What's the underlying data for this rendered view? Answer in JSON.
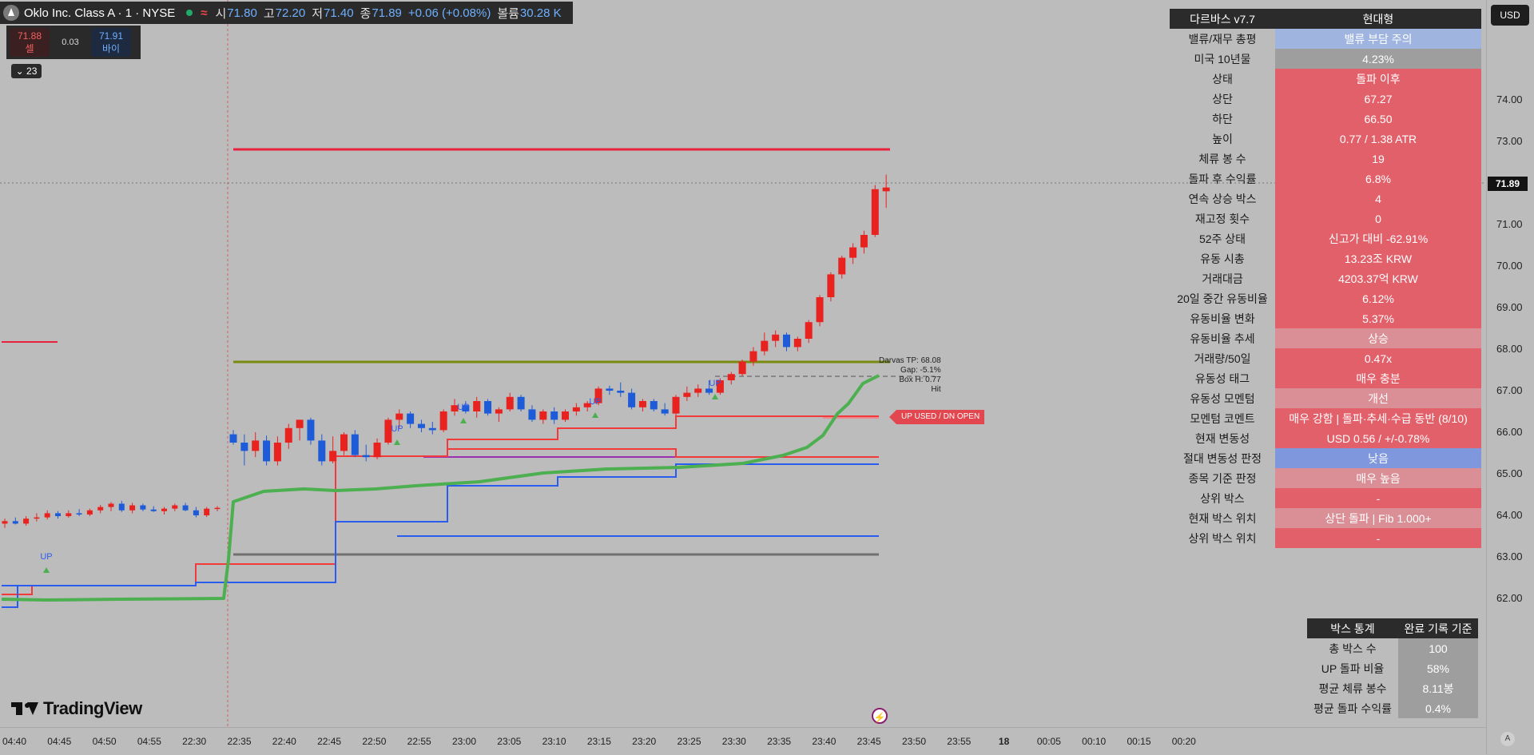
{
  "header": {
    "symbol": "Oklo Inc. Class A · 1 · NYSE",
    "o_label": "시",
    "o": "71.80",
    "h_label": "고",
    "h": "72.20",
    "l_label": "저",
    "l": "71.40",
    "c_label": "종",
    "c": "71.89",
    "change": "+0.06 (+0.08%)",
    "vol_label": "볼륨",
    "vol": "30.28 K"
  },
  "trade": {
    "sell_price": "71.88",
    "sell_label": "셀",
    "spread": "0.03",
    "buy_price": "71.91",
    "buy_label": "바이"
  },
  "legend_toggle": "23",
  "currency": "USD",
  "last_price": "71.89",
  "price_ticks": [
    "74.00",
    "73.00",
    "72.00",
    "71.00",
    "70.00",
    "69.00",
    "68.00",
    "67.00",
    "66.00",
    "65.00",
    "64.00",
    "63.00",
    "62.00"
  ],
  "time_ticks": [
    "04:40",
    "04:45",
    "04:50",
    "04:55",
    "22:30",
    "22:35",
    "22:40",
    "22:45",
    "22:50",
    "22:55",
    "23:00",
    "23:05",
    "23:10",
    "23:15",
    "23:20",
    "23:25",
    "23:30",
    "23:35",
    "23:40",
    "23:45",
    "23:50",
    "23:55",
    "18",
    "00:05",
    "00:10",
    "00:15",
    "00:20"
  ],
  "brand": "TradingView",
  "auto_label": "A",
  "darvas_table": {
    "title": "다르바스 v7.7",
    "mode": "현대형",
    "rows": [
      {
        "label": "밸류/재무 총평",
        "value": "밸류 부담 주의",
        "color": "#9fb5e0"
      },
      {
        "label": "미국 10년물",
        "value": "4.23%",
        "color": "#9e9e9e"
      },
      {
        "label": "상태",
        "value": "돌파 이후",
        "color": "#e2606a"
      },
      {
        "label": "상단",
        "value": "67.27",
        "color": "#e2606a"
      },
      {
        "label": "하단",
        "value": "66.50",
        "color": "#e2606a"
      },
      {
        "label": "높이",
        "value": "0.77 / 1.38 ATR",
        "color": "#e2606a"
      },
      {
        "label": "체류 봉 수",
        "value": "19",
        "color": "#e2606a"
      },
      {
        "label": "돌파 후 수익률",
        "value": "6.8%",
        "color": "#e2606a"
      },
      {
        "label": "연속 상승 박스",
        "value": "4",
        "color": "#e2606a"
      },
      {
        "label": "재고정 횟수",
        "value": "0",
        "color": "#e2606a"
      },
      {
        "label": "52주 상태",
        "value": "신고가 대비 -62.91%",
        "color": "#e2606a"
      },
      {
        "label": "유동 시총",
        "value": "13.23조 KRW",
        "color": "#e2606a"
      },
      {
        "label": "거래대금",
        "value": "4203.37억 KRW",
        "color": "#e2606a"
      },
      {
        "label": "20일 중간 유동비율",
        "value": "6.12%",
        "color": "#e2606a"
      },
      {
        "label": "유동비율 변화",
        "value": "5.37%",
        "color": "#e2606a"
      },
      {
        "label": "유동비율 추세",
        "value": "상승",
        "color": "#d98f95"
      },
      {
        "label": "거래량/50일",
        "value": "0.47x",
        "color": "#e2606a"
      },
      {
        "label": "유동성 태그",
        "value": "매우 충분",
        "color": "#e2606a"
      },
      {
        "label": "유동성 모멘텀",
        "value": "개선",
        "color": "#d98f95"
      },
      {
        "label": "모멘텀 코멘트",
        "value": "매우 강함 | 돌파·추세·수급 동반 (8/10)",
        "color": "#e2606a"
      },
      {
        "label": "현재 변동성",
        "value": "USD 0.56 / +/-0.78%",
        "color": "#e2606a"
      },
      {
        "label": "절대 변동성 판정",
        "value": "낮음",
        "color": "#7f97dc"
      },
      {
        "label": "종목 기준 판정",
        "value": "매우 높음",
        "color": "#d98f95"
      },
      {
        "label": "상위 박스",
        "value": "-",
        "color": "#e2606a"
      },
      {
        "label": "현재 박스 위치",
        "value": "상단 돌파 | Fib 1.000+",
        "color": "#d98f95"
      },
      {
        "label": "상위 박스 위치",
        "value": "-",
        "color": "#e2606a"
      }
    ]
  },
  "stats_table": {
    "title": "박스 통계",
    "basis": "완료 기록 기준",
    "rows": [
      {
        "label": "총 박스 수",
        "value": "100"
      },
      {
        "label": "UP 돌파 비율",
        "value": "58%"
      },
      {
        "label": "평균 체류 봉수",
        "value": "8.11봉"
      },
      {
        "label": "평균 돌파 수익률",
        "value": "0.4%"
      }
    ]
  },
  "annotations": {
    "darvas_tp": "Darvas TP: 68.08",
    "gap": "Gap: -5.1%",
    "box_h": "Box H: 0.77",
    "hit": "Hit",
    "up_tag": "UP USED / DN OPEN",
    "up_label": "UP"
  },
  "colors": {
    "up_candle": "#e8221e",
    "down_candle": "#1e5bd8",
    "box_top": "#f23a3a",
    "box_bottom": "#2a5cf0",
    "trend": "#4caf50",
    "resistance": "#e8223c",
    "tp_line": "#7a8a10"
  },
  "candles": [
    {
      "t": "04:38",
      "o": 63.8,
      "h": 63.92,
      "l": 63.7,
      "c": 63.86
    },
    {
      "t": "04:39",
      "o": 63.86,
      "h": 63.95,
      "l": 63.78,
      "c": 63.8
    },
    {
      "t": "04:40",
      "o": 63.8,
      "h": 63.98,
      "l": 63.75,
      "c": 63.92
    },
    {
      "t": "04:41",
      "o": 63.92,
      "h": 64.05,
      "l": 63.85,
      "c": 63.95
    },
    {
      "t": "04:42",
      "o": 63.95,
      "h": 64.12,
      "l": 63.9,
      "c": 64.05
    },
    {
      "t": "04:43",
      "o": 64.05,
      "h": 64.1,
      "l": 63.92,
      "c": 63.98
    },
    {
      "t": "04:44",
      "o": 63.98,
      "h": 64.12,
      "l": 63.94,
      "c": 64.05
    },
    {
      "t": "04:45",
      "o": 64.05,
      "h": 64.15,
      "l": 63.98,
      "c": 64.02
    },
    {
      "t": "04:46",
      "o": 64.02,
      "h": 64.16,
      "l": 63.98,
      "c": 64.12
    },
    {
      "t": "04:47",
      "o": 64.12,
      "h": 64.25,
      "l": 64.05,
      "c": 64.2
    },
    {
      "t": "04:48",
      "o": 64.2,
      "h": 64.32,
      "l": 64.1,
      "c": 64.28
    },
    {
      "t": "04:49",
      "o": 64.28,
      "h": 64.35,
      "l": 64.08,
      "c": 64.12
    },
    {
      "t": "04:50",
      "o": 64.12,
      "h": 64.3,
      "l": 64.05,
      "c": 64.24
    },
    {
      "t": "04:51",
      "o": 64.24,
      "h": 64.28,
      "l": 64.1,
      "c": 64.14
    },
    {
      "t": "04:52",
      "o": 64.14,
      "h": 64.22,
      "l": 64.08,
      "c": 64.1
    },
    {
      "t": "04:53",
      "o": 64.1,
      "h": 64.2,
      "l": 64.02,
      "c": 64.16
    },
    {
      "t": "04:54",
      "o": 64.16,
      "h": 64.28,
      "l": 64.1,
      "c": 64.24
    },
    {
      "t": "04:55",
      "o": 64.24,
      "h": 64.3,
      "l": 64.1,
      "c": 64.12
    },
    {
      "t": "04:56",
      "o": 64.12,
      "h": 64.2,
      "l": 63.95,
      "c": 64.0
    },
    {
      "t": "04:57",
      "o": 64.0,
      "h": 64.2,
      "l": 63.96,
      "c": 64.16
    },
    {
      "t": "04:58",
      "o": 64.16,
      "h": 64.22,
      "l": 64.1,
      "c": 64.18
    },
    {
      "t": "22:30",
      "o": 65.95,
      "h": 66.05,
      "l": 65.7,
      "c": 65.75
    },
    {
      "t": "22:31",
      "o": 65.75,
      "h": 65.95,
      "l": 65.2,
      "c": 65.55
    },
    {
      "t": "22:32",
      "o": 65.55,
      "h": 66.0,
      "l": 65.4,
      "c": 65.8
    },
    {
      "t": "22:33",
      "o": 65.8,
      "h": 65.92,
      "l": 65.2,
      "c": 65.3
    },
    {
      "t": "22:34",
      "o": 65.3,
      "h": 65.9,
      "l": 65.2,
      "c": 65.75
    },
    {
      "t": "22:35",
      "o": 65.75,
      "h": 66.2,
      "l": 65.6,
      "c": 66.1
    },
    {
      "t": "22:36",
      "o": 66.1,
      "h": 66.3,
      "l": 65.8,
      "c": 66.3
    },
    {
      "t": "22:37",
      "o": 66.3,
      "h": 66.35,
      "l": 65.7,
      "c": 65.8
    },
    {
      "t": "22:38",
      "o": 65.8,
      "h": 65.95,
      "l": 65.2,
      "c": 65.3
    },
    {
      "t": "22:39",
      "o": 65.3,
      "h": 65.9,
      "l": 65.25,
      "c": 65.55
    },
    {
      "t": "22:40",
      "o": 65.55,
      "h": 66.0,
      "l": 65.45,
      "c": 65.95
    },
    {
      "t": "22:41",
      "o": 65.95,
      "h": 66.05,
      "l": 65.4,
      "c": 65.45
    },
    {
      "t": "22:42",
      "o": 65.45,
      "h": 65.7,
      "l": 65.3,
      "c": 65.4
    },
    {
      "t": "22:43",
      "o": 65.4,
      "h": 65.85,
      "l": 65.35,
      "c": 65.75
    },
    {
      "t": "22:44",
      "o": 65.75,
      "h": 66.35,
      "l": 65.7,
      "c": 66.3
    },
    {
      "t": "22:45",
      "o": 66.3,
      "h": 66.55,
      "l": 66.1,
      "c": 66.45
    },
    {
      "t": "22:46",
      "o": 66.45,
      "h": 66.5,
      "l": 66.1,
      "c": 66.2
    },
    {
      "t": "22:47",
      "o": 66.2,
      "h": 66.3,
      "l": 66.0,
      "c": 66.1
    },
    {
      "t": "22:48",
      "o": 66.1,
      "h": 66.25,
      "l": 65.95,
      "c": 66.05
    },
    {
      "t": "22:49",
      "o": 66.05,
      "h": 66.55,
      "l": 66.0,
      "c": 66.5
    },
    {
      "t": "22:50",
      "o": 66.5,
      "h": 66.8,
      "l": 66.4,
      "c": 66.65
    },
    {
      "t": "22:51",
      "o": 66.65,
      "h": 66.75,
      "l": 66.45,
      "c": 66.5
    },
    {
      "t": "22:52",
      "o": 66.5,
      "h": 66.85,
      "l": 66.35,
      "c": 66.75
    },
    {
      "t": "22:53",
      "o": 66.75,
      "h": 66.8,
      "l": 66.4,
      "c": 66.45
    },
    {
      "t": "22:54",
      "o": 66.45,
      "h": 66.6,
      "l": 66.25,
      "c": 66.55
    },
    {
      "t": "22:55",
      "o": 66.55,
      "h": 66.95,
      "l": 66.5,
      "c": 66.85
    },
    {
      "t": "22:56",
      "o": 66.85,
      "h": 66.9,
      "l": 66.5,
      "c": 66.55
    },
    {
      "t": "22:57",
      "o": 66.55,
      "h": 66.65,
      "l": 66.25,
      "c": 66.3
    },
    {
      "t": "22:58",
      "o": 66.3,
      "h": 66.55,
      "l": 66.2,
      "c": 66.5
    },
    {
      "t": "22:59",
      "o": 66.5,
      "h": 66.6,
      "l": 66.2,
      "c": 66.3
    },
    {
      "t": "23:00",
      "o": 66.3,
      "h": 66.55,
      "l": 66.25,
      "c": 66.5
    },
    {
      "t": "23:01",
      "o": 66.5,
      "h": 66.7,
      "l": 66.4,
      "c": 66.6
    },
    {
      "t": "23:02",
      "o": 66.6,
      "h": 66.75,
      "l": 66.5,
      "c": 66.7
    },
    {
      "t": "23:03",
      "o": 66.7,
      "h": 67.1,
      "l": 66.65,
      "c": 67.05
    },
    {
      "t": "23:04",
      "o": 67.05,
      "h": 67.12,
      "l": 66.9,
      "c": 67.0
    },
    {
      "t": "23:05",
      "o": 67.0,
      "h": 67.2,
      "l": 66.85,
      "c": 66.95
    },
    {
      "t": "23:06",
      "o": 66.95,
      "h": 67.05,
      "l": 66.55,
      "c": 66.6
    },
    {
      "t": "23:07",
      "o": 66.6,
      "h": 66.8,
      "l": 66.5,
      "c": 66.75
    },
    {
      "t": "23:08",
      "o": 66.75,
      "h": 66.8,
      "l": 66.5,
      "c": 66.55
    },
    {
      "t": "23:09",
      "o": 66.55,
      "h": 66.7,
      "l": 66.4,
      "c": 66.45
    },
    {
      "t": "23:10",
      "o": 66.45,
      "h": 66.9,
      "l": 66.4,
      "c": 66.85
    },
    {
      "t": "23:11",
      "o": 66.85,
      "h": 67.1,
      "l": 66.75,
      "c": 66.95
    },
    {
      "t": "23:12",
      "o": 66.95,
      "h": 67.15,
      "l": 66.85,
      "c": 67.05
    },
    {
      "t": "23:13",
      "o": 67.05,
      "h": 67.25,
      "l": 66.9,
      "c": 66.95
    },
    {
      "t": "23:14",
      "o": 66.95,
      "h": 67.3,
      "l": 66.9,
      "c": 67.25
    },
    {
      "t": "23:15",
      "o": 67.25,
      "h": 67.45,
      "l": 67.15,
      "c": 67.4
    },
    {
      "t": "23:16",
      "o": 67.4,
      "h": 67.75,
      "l": 67.35,
      "c": 67.7
    },
    {
      "t": "23:17",
      "o": 67.7,
      "h": 68.05,
      "l": 67.6,
      "c": 67.95
    },
    {
      "t": "23:18",
      "o": 67.95,
      "h": 68.4,
      "l": 67.85,
      "c": 68.2
    },
    {
      "t": "23:19",
      "o": 68.2,
      "h": 68.45,
      "l": 68.05,
      "c": 68.35
    },
    {
      "t": "23:20",
      "o": 68.35,
      "h": 68.4,
      "l": 67.95,
      "c": 68.05
    },
    {
      "t": "23:21",
      "o": 68.05,
      "h": 68.3,
      "l": 67.95,
      "c": 68.25
    },
    {
      "t": "23:22",
      "o": 68.25,
      "h": 68.7,
      "l": 68.15,
      "c": 68.65
    },
    {
      "t": "23:23",
      "o": 68.65,
      "h": 69.3,
      "l": 68.55,
      "c": 69.25
    },
    {
      "t": "23:24",
      "o": 69.25,
      "h": 69.85,
      "l": 69.15,
      "c": 69.8
    },
    {
      "t": "23:25",
      "o": 69.8,
      "h": 70.25,
      "l": 69.7,
      "c": 70.2
    },
    {
      "t": "23:26",
      "o": 70.2,
      "h": 70.55,
      "l": 70.05,
      "c": 70.45
    },
    {
      "t": "23:27",
      "o": 70.45,
      "h": 70.85,
      "l": 70.3,
      "c": 70.75
    },
    {
      "t": "23:28",
      "o": 70.75,
      "h": 71.95,
      "l": 70.7,
      "c": 71.85
    },
    {
      "t": "23:29",
      "o": 71.8,
      "h": 72.2,
      "l": 71.4,
      "c": 71.89
    }
  ]
}
